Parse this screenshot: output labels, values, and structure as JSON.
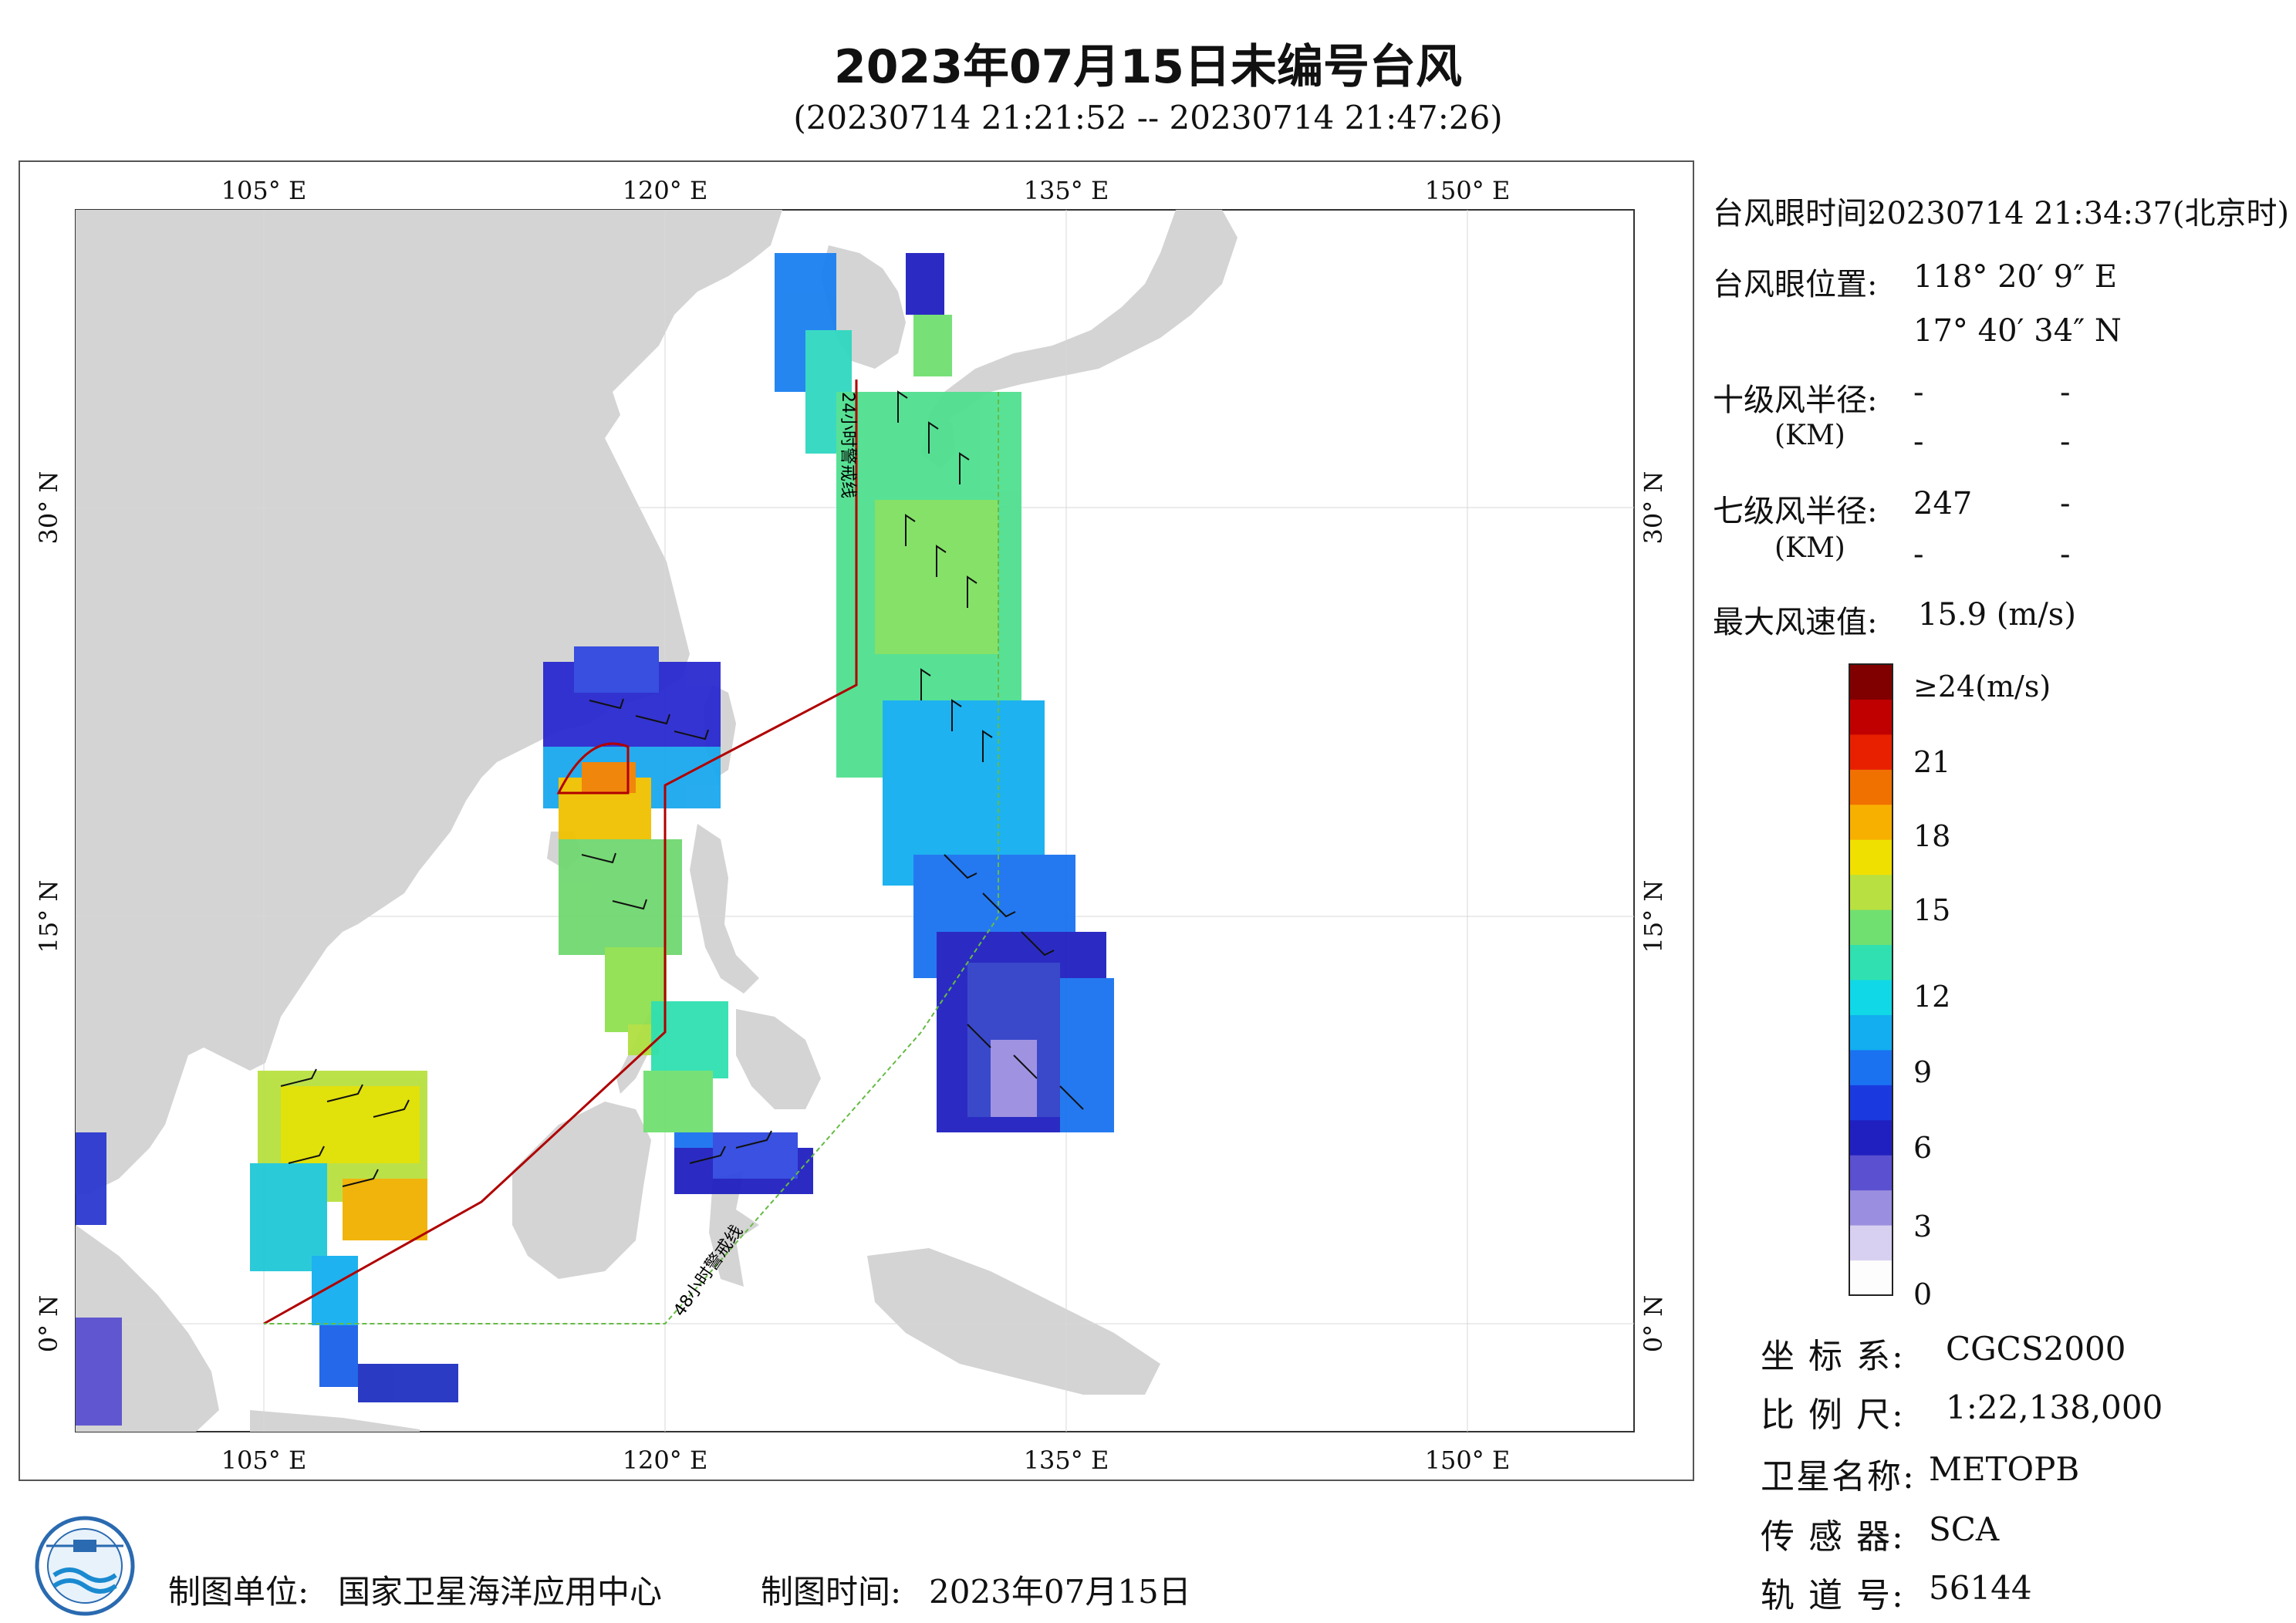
{
  "title": "2023年07月15日未编号台风",
  "subtitle": "(20230714 21:21:52 -- 20230714 21:47:26)",
  "map": {
    "top_lon_labels": [
      "105° E",
      "120° E",
      "135° E",
      "150° E"
    ],
    "bottom_lon_labels": [
      "105° E",
      "120° E",
      "135° E",
      "150° E"
    ],
    "left_lat_labels": [
      "30° N",
      "15° N",
      "0° N"
    ],
    "right_lat_labels": [
      "30° N",
      "15° N",
      "0° N"
    ],
    "warning_24h": "24小时警戒线",
    "warning_48h": "48小时警戒线",
    "colors": {
      "land": "#d4d4d4",
      "sea": "#ffffff",
      "line_24h": "#b00000",
      "line_48h": "#66bb44"
    }
  },
  "info": {
    "eye_time_label": "台风眼时间:",
    "eye_time_value": "20230714 21:34:37(北京时)",
    "eye_pos_label": "台风眼位置:",
    "eye_lon": "118° 20′ 9″ E",
    "eye_lat": "17° 40′ 34″ N",
    "r10_label": "十级风半径:",
    "r10_v1": "-",
    "r10_v2": "-",
    "km_label": "(KM)",
    "r10_v3": "-",
    "r10_v4": "-",
    "r7_label": "七级风半径:",
    "r7_v1": "247",
    "r7_v2": "-",
    "r7_v3": "-",
    "r7_v4": "-",
    "max_wind_label": "最大风速值:",
    "max_wind_value": "15.9  (m/s)"
  },
  "colorbar": {
    "labels": [
      "≥24(m/s)",
      "21",
      "18",
      "15",
      "12",
      "9",
      "6",
      "3",
      "0"
    ],
    "colors": [
      "#fdfdfd",
      "#d8d0f0",
      "#9a8ee0",
      "#5a50d0",
      "#2020c0",
      "#1a3ae0",
      "#1a72f0",
      "#12aef0",
      "#10d8e6",
      "#30e0b0",
      "#70e070",
      "#b8e040",
      "#f0e000",
      "#f8b000",
      "#f07000",
      "#e82000",
      "#c00000",
      "#800000"
    ]
  },
  "meta": {
    "coord_label": "坐 标 系:",
    "coord_value": "CGCS2000",
    "scale_label": "比 例 尺:",
    "scale_value": "1:22,138,000",
    "sat_label": "卫星名称:",
    "sat_value": "METOPB",
    "sensor_label": "传 感 器:",
    "sensor_value": "SCA",
    "orbit_label": "轨 道 号:",
    "orbit_value": "56144"
  },
  "footer": {
    "org_label": "制图单位:",
    "org_value": "国家卫星海洋应用中心",
    "date_label": "制图时间:",
    "date_value": "2023年07月15日"
  }
}
